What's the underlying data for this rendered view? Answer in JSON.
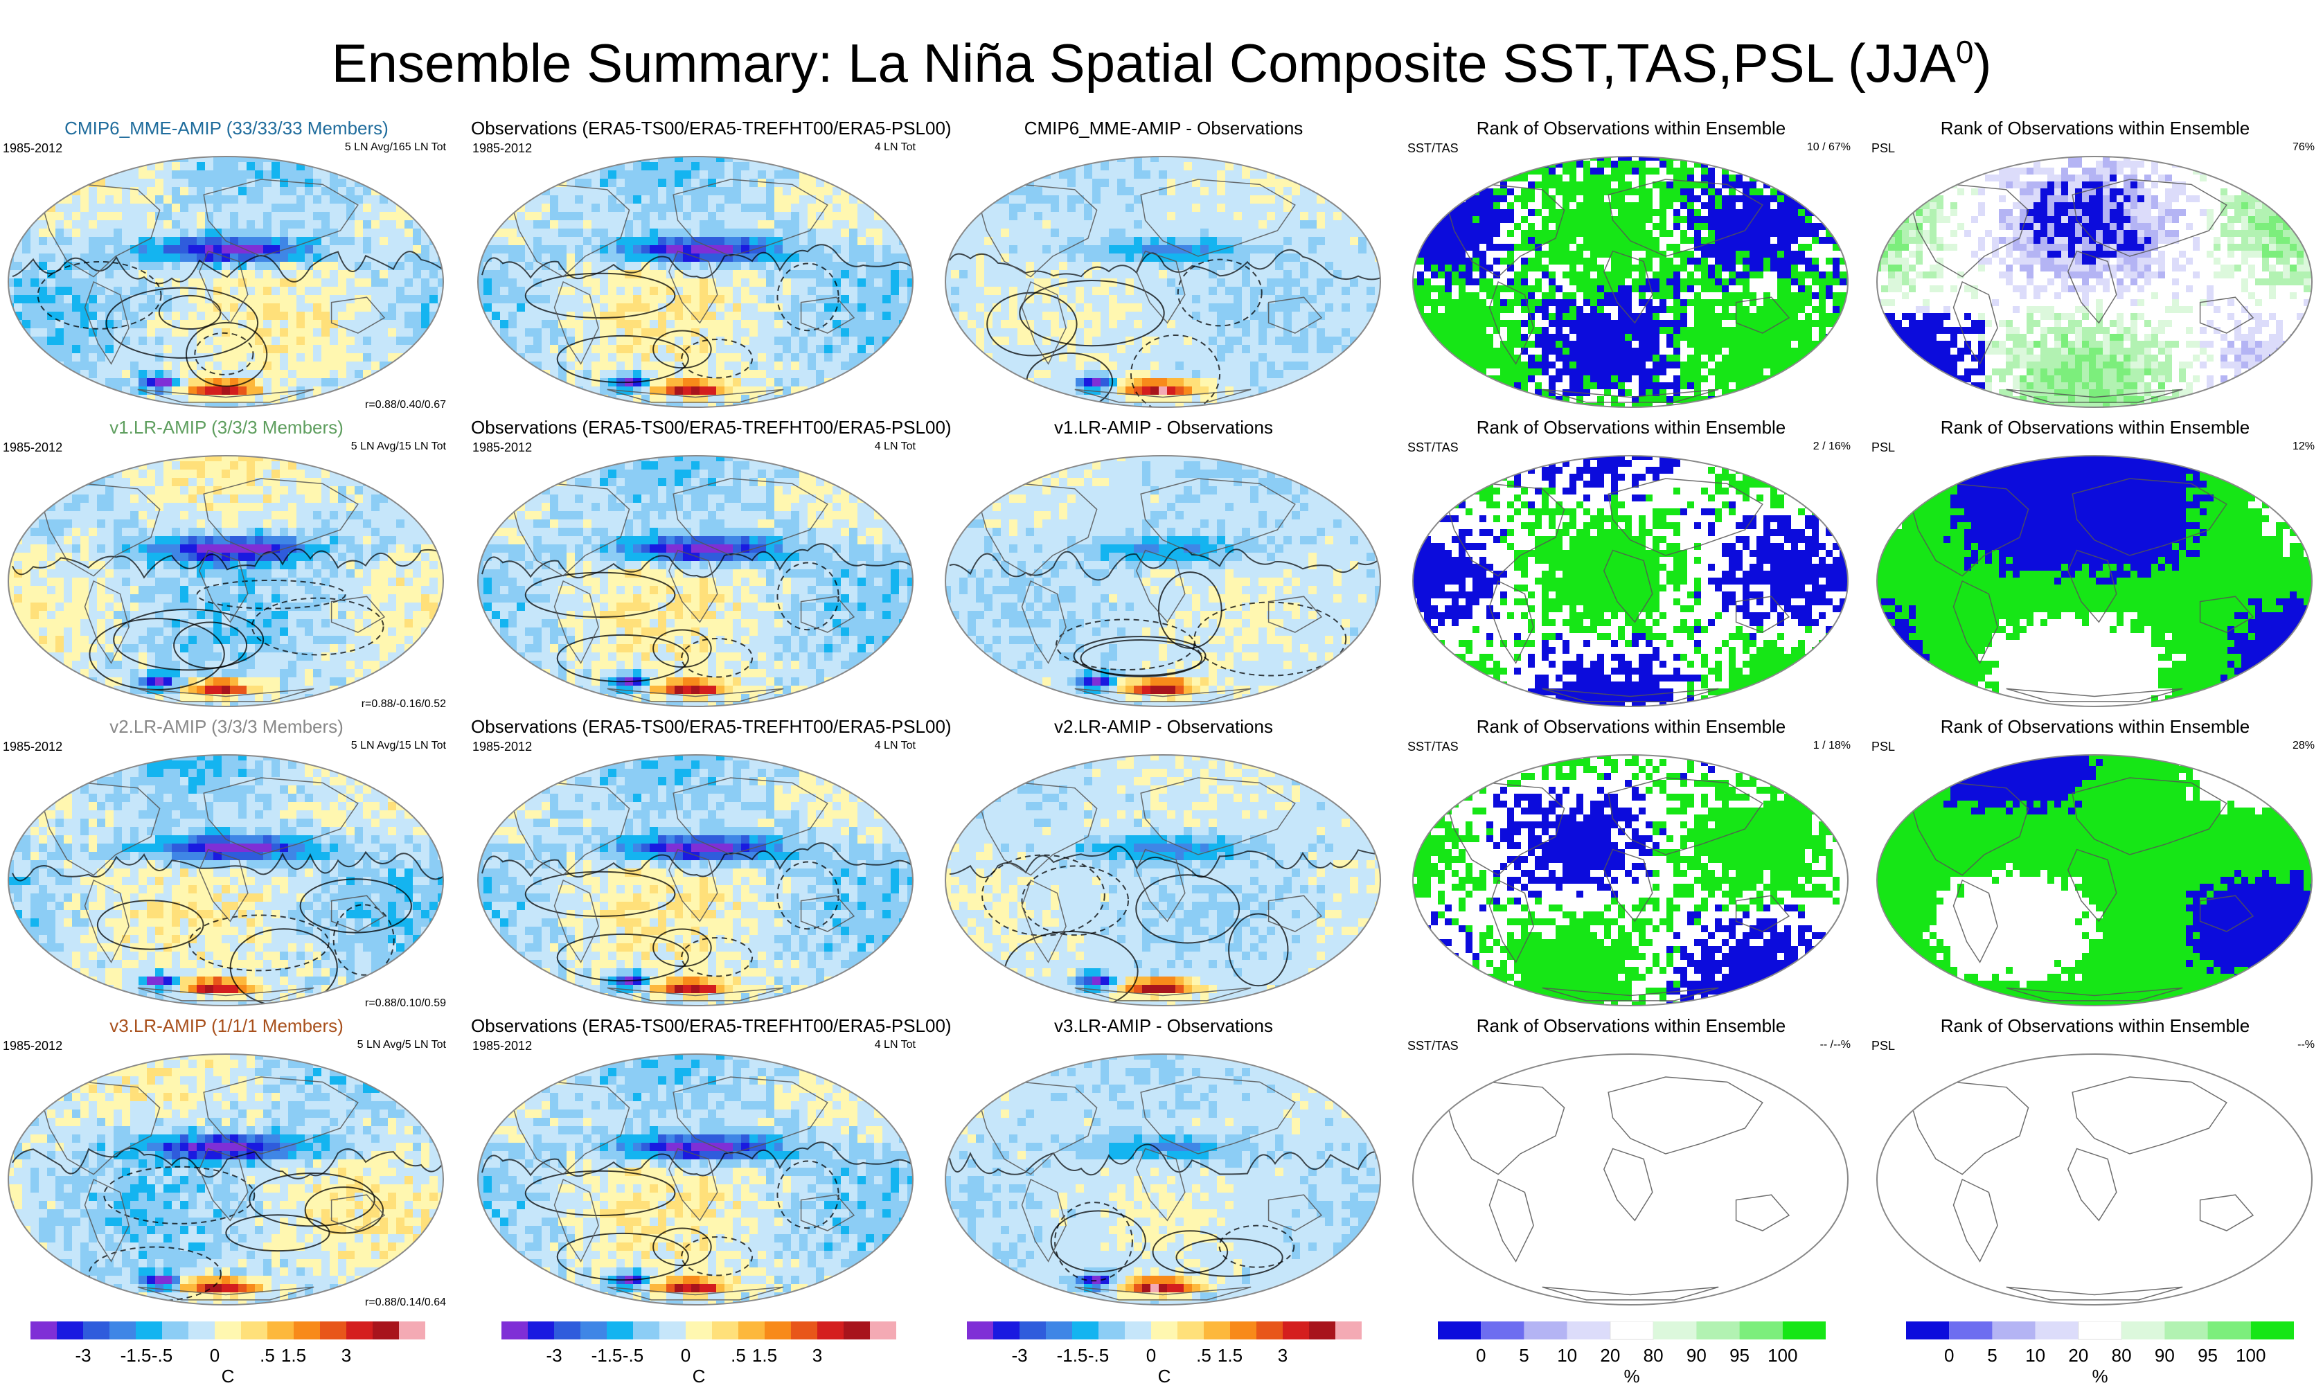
{
  "title_main": "Ensemble Summary: La Niña Spatial Composite SST,TAS,PSL (JJA",
  "title_sup": "0",
  "title_close": ")",
  "colors": {
    "cold": [
      "#7f2fd6",
      "#1a1ae0",
      "#2f5cdc",
      "#3f86e6",
      "#14b4f0",
      "#8ccdf5",
      "#c6e6fa"
    ],
    "warm": [
      "#fff7b0",
      "#ffe07a",
      "#fdb83c",
      "#f88a1a",
      "#e8561a",
      "#d41e1e",
      "#a8141c",
      "#f4aab4"
    ],
    "rank": [
      "#0c0cdc",
      "#6d6df0",
      "#b4b4f4",
      "#dcdcfa",
      "#ffffff",
      "#dcf8dc",
      "#b2f2b2",
      "#7cee7c",
      "#16e616"
    ],
    "blue_title": "#1f6c9c",
    "green_title": "#5e9e5e",
    "gray_title": "#888888",
    "brown_title": "#a8501c"
  },
  "rows": [
    {
      "model": {
        "title": "CMIP6_MME-AMIP (33/33/33 Members)",
        "years": "1985-2012",
        "count": "5 LN Avg/165 LN Tot",
        "stat": "r=0.88/0.40/0.67"
      },
      "obs": {
        "title": "Observations (ERA5-TS00/ERA5-TREFHT00/ERA5-PSL00)",
        "years": "1985-2012",
        "count": "4 LN Tot"
      },
      "diff": {
        "title": "CMIP6_MME-AMIP - Observations"
      },
      "rank_sst": {
        "title": "Rank of Observations within Ensemble",
        "var": "SST/TAS",
        "pct": "10 /  67%"
      },
      "rank_psl": {
        "title": "Rank of Observations within Ensemble",
        "var": "PSL",
        "pct": "76%"
      }
    },
    {
      "model": {
        "title": "v1.LR-AMIP (3/3/3 Members)",
        "years": "1985-2012",
        "count": "5 LN Avg/15 LN Tot",
        "stat": "r=0.88/-0.16/0.52"
      },
      "obs": {
        "title": "Observations (ERA5-TS00/ERA5-TREFHT00/ERA5-PSL00)",
        "years": "1985-2012",
        "count": "4 LN Tot"
      },
      "diff": {
        "title": "v1.LR-AMIP - Observations"
      },
      "rank_sst": {
        "title": "Rank of Observations within Ensemble",
        "var": "SST/TAS",
        "pct": "2 /  16%"
      },
      "rank_psl": {
        "title": "Rank of Observations within Ensemble",
        "var": "PSL",
        "pct": "12%"
      }
    },
    {
      "model": {
        "title": "v2.LR-AMIP (3/3/3 Members)",
        "years": "1985-2012",
        "count": "5 LN Avg/15 LN Tot",
        "stat": "r=0.88/0.10/0.59"
      },
      "obs": {
        "title": "Observations (ERA5-TS00/ERA5-TREFHT00/ERA5-PSL00)",
        "years": "1985-2012",
        "count": "4 LN Tot"
      },
      "diff": {
        "title": "v2.LR-AMIP - Observations"
      },
      "rank_sst": {
        "title": "Rank of Observations within Ensemble",
        "var": "SST/TAS",
        "pct": "1 /  18%"
      },
      "rank_psl": {
        "title": "Rank of Observations within Ensemble",
        "var": "PSL",
        "pct": "28%"
      }
    },
    {
      "model": {
        "title": "v3.LR-AMIP (1/1/1 Members)",
        "years": "1985-2012",
        "count": "5 LN Avg/5 LN Tot",
        "stat": "r=0.88/0.14/0.64"
      },
      "obs": {
        "title": "Observations (ERA5-TS00/ERA5-TREFHT00/ERA5-PSL00)",
        "years": "1985-2012",
        "count": "4 LN Tot"
      },
      "diff": {
        "title": "v3.LR-AMIP - Observations"
      },
      "rank_sst": {
        "title": "Rank of Observations within Ensemble",
        "var": "SST/TAS",
        "pct": "-- /--%"
      },
      "rank_psl": {
        "title": "Rank of Observations within Ensemble",
        "var": "PSL",
        "pct": "--%"
      }
    }
  ],
  "temp_colorbar": {
    "labels": [
      "-3",
      "-1.5",
      "-.5",
      "0",
      ".5",
      "1.5",
      "3"
    ],
    "unit": "C"
  },
  "rank_colorbar": {
    "labels": [
      "0",
      "5",
      "10",
      "20",
      "80",
      "90",
      "95",
      "100"
    ],
    "unit": "%"
  }
}
